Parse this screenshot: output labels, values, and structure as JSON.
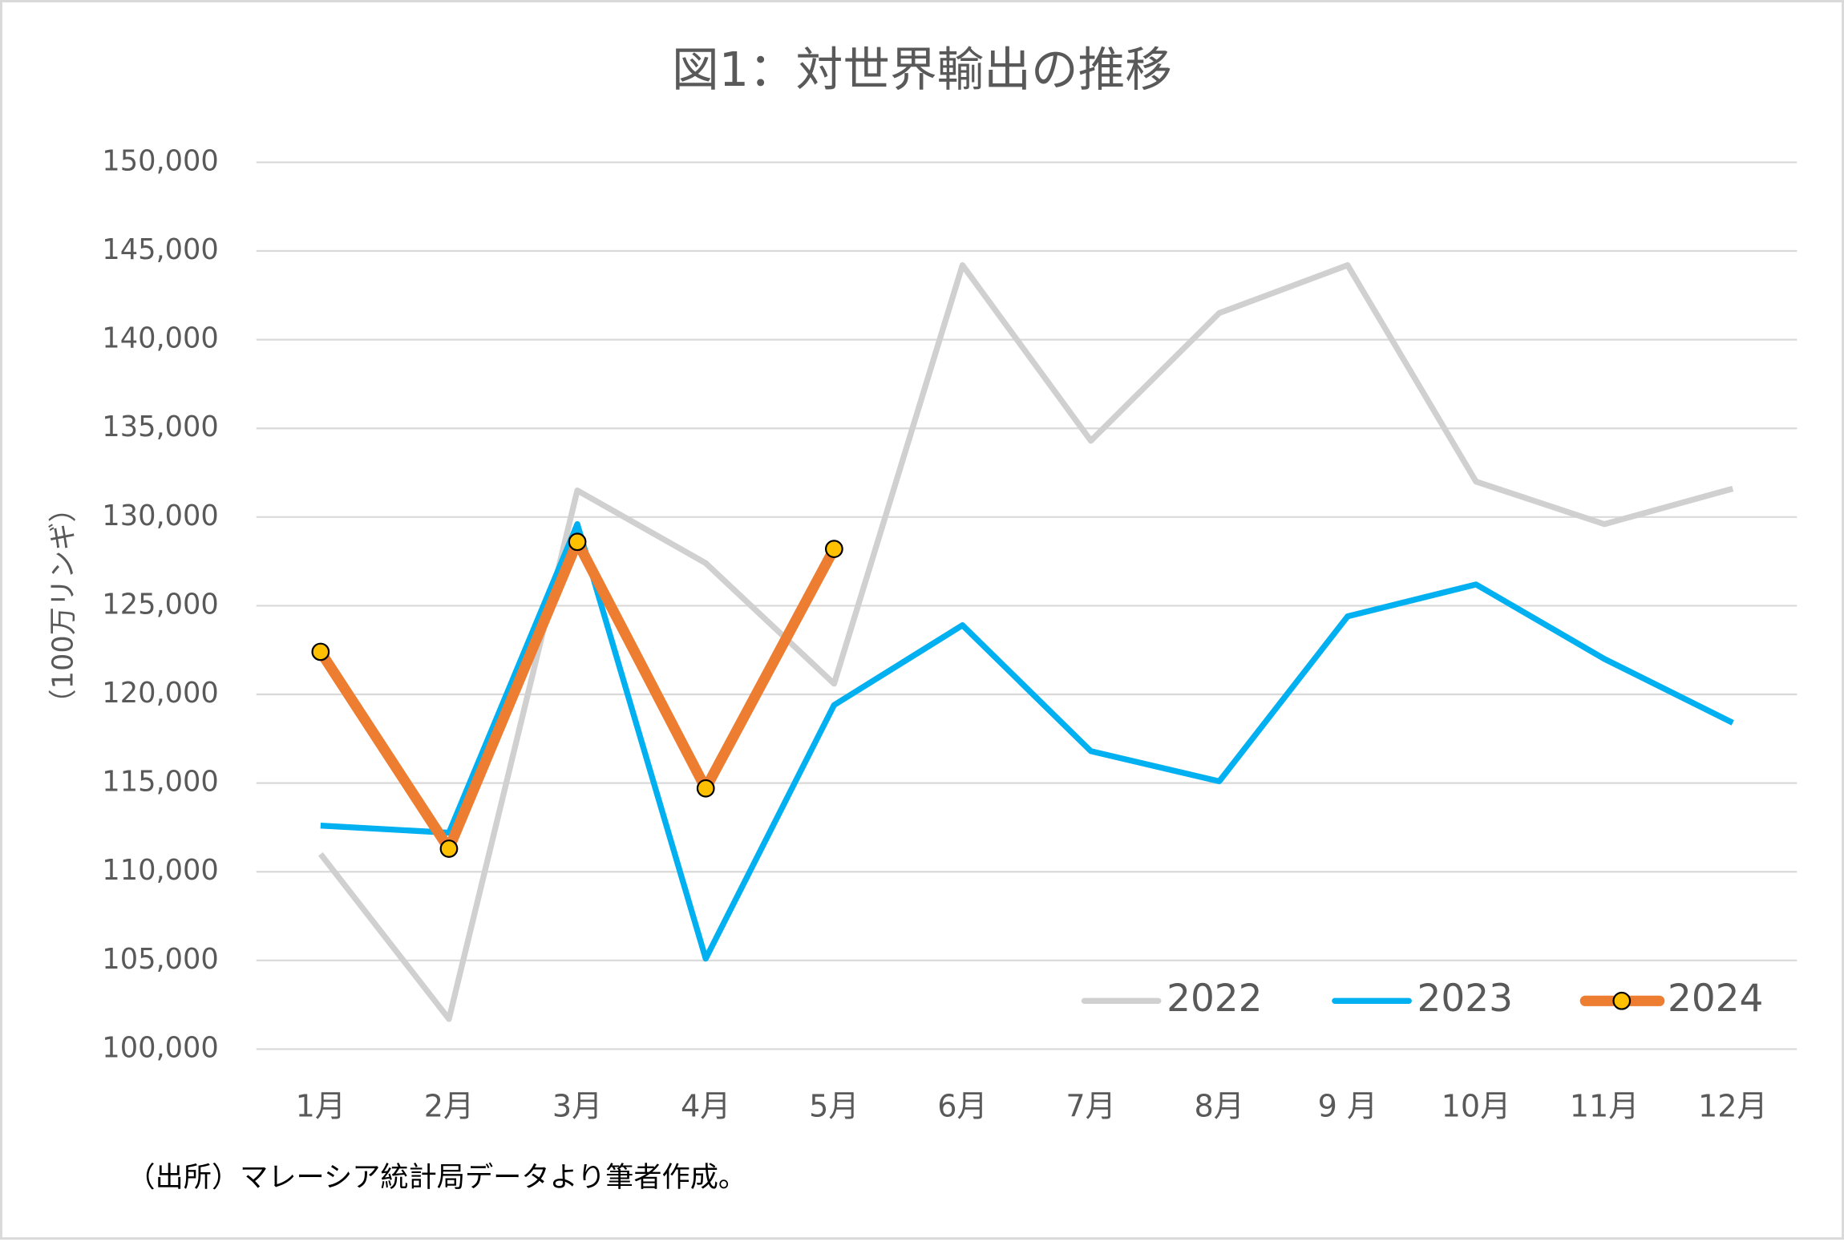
{
  "chart_data": {
    "type": "line",
    "title": "図1：対世界輸出の推移",
    "y_label": "（100万リンギ）",
    "source": "（出所）マレーシア統計局データより筆者作成。",
    "categories": [
      "1月",
      "2月",
      "3月",
      "4月",
      "5月",
      "6月",
      "7月",
      "8月",
      "9 月",
      "10月",
      "11月",
      "12月"
    ],
    "series": [
      {
        "name": "2022",
        "color": "#d0d0d0",
        "values": [
          111000,
          101700,
          131500,
          127400,
          120600,
          144200,
          134300,
          141500,
          144200,
          132000,
          129600,
          131600
        ]
      },
      {
        "name": "2023",
        "color": "#00b0f0",
        "values": [
          112600,
          112200,
          129600,
          105100,
          119400,
          123900,
          116800,
          115100,
          124400,
          126200,
          122000,
          118400
        ]
      },
      {
        "name": "2024",
        "color": "#ed7d31",
        "marker_color": "#ffc000",
        "values": [
          122400,
          111300,
          128600,
          114700,
          128200,
          null,
          null,
          null,
          null,
          null,
          null,
          null
        ]
      }
    ],
    "ylim": [
      100000,
      150000
    ],
    "yticks": [
      {
        "value": 100000,
        "label": "100,000"
      },
      {
        "value": 105000,
        "label": "105,000"
      },
      {
        "value": 110000,
        "label": "110,000"
      },
      {
        "value": 115000,
        "label": "115,000"
      },
      {
        "value": 120000,
        "label": "120,000"
      },
      {
        "value": 125000,
        "label": "125,000"
      },
      {
        "value": 130000,
        "label": "130,000"
      },
      {
        "value": 135000,
        "label": "135,000"
      },
      {
        "value": 140000,
        "label": "140,000"
      },
      {
        "value": 145000,
        "label": "145,000"
      },
      {
        "value": 150000,
        "label": "150,000"
      }
    ],
    "grid": true,
    "legend": "bottom-right"
  }
}
